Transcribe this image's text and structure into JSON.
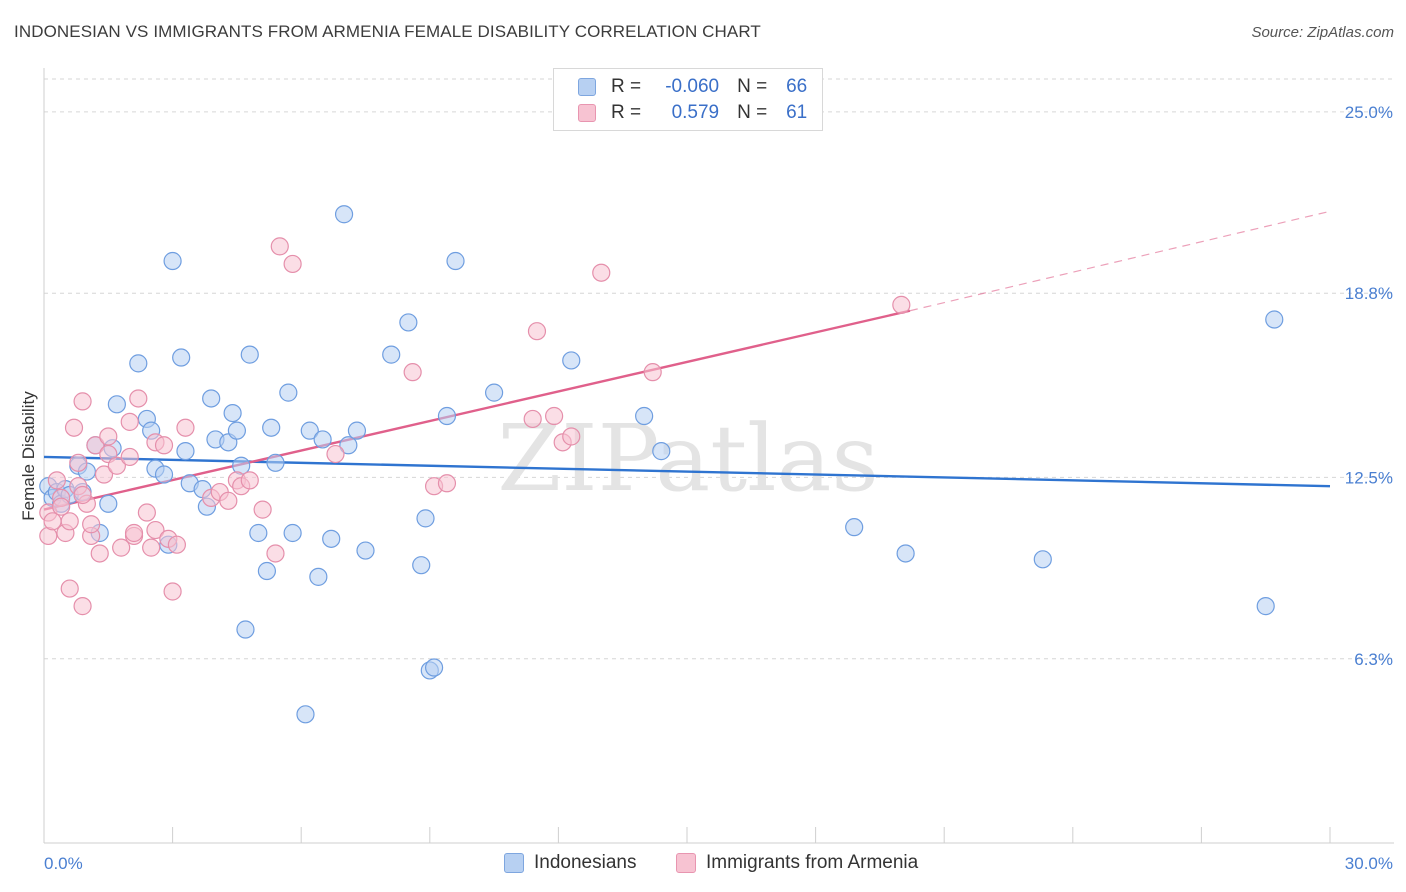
{
  "title": "INDONESIAN VS IMMIGRANTS FROM ARMENIA FEMALE DISABILITY CORRELATION CHART",
  "source": "Source: ZipAtlas.com",
  "watermark": "ZIPatlas",
  "legend_top": {
    "rows": [
      {
        "r_label": "R =",
        "r_value": "-0.060",
        "n_label": "N =",
        "n_value": "66"
      },
      {
        "r_label": "R =",
        "r_value": "0.579",
        "n_label": "N =",
        "n_value": "61"
      }
    ]
  },
  "legend_bottom": {
    "items": [
      "Indonesians",
      "Immigrants from Armenia"
    ]
  },
  "colors": {
    "blue_fill": "#b7d0f2",
    "blue_stroke": "#6f9ee0",
    "blue_line": "#2f74d0",
    "pink_fill": "#f7c3d2",
    "pink_stroke": "#e58fab",
    "pink_line": "#e0608b",
    "grid": "#d6d6d6",
    "tick_label": "#4a7fd1"
  },
  "chart_data": {
    "type": "scatter",
    "title": "INDONESIAN VS IMMIGRANTS FROM ARMENIA FEMALE DISABILITY CORRELATION CHART",
    "xlabel": "",
    "ylabel": "Female Disability",
    "xlim": [
      0,
      30
    ],
    "ylim": [
      0,
      26.5
    ],
    "x_tick_labels": [
      "0.0%",
      "30.0%"
    ],
    "y_ticks": [
      6.3,
      12.5,
      18.8,
      25.0
    ],
    "y_tick_labels": [
      "6.3%",
      "12.5%",
      "18.8%",
      "25.0%"
    ],
    "series": [
      {
        "name": "Indonesians",
        "R": -0.06,
        "N": 66,
        "trend": {
          "x": [
            0,
            30
          ],
          "y": [
            13.2,
            12.2
          ]
        },
        "points": [
          [
            0.1,
            12.2
          ],
          [
            0.2,
            11.8
          ],
          [
            0.3,
            12.0
          ],
          [
            0.4,
            11.6
          ],
          [
            0.5,
            12.1
          ],
          [
            0.6,
            11.9
          ],
          [
            0.8,
            12.9
          ],
          [
            1.0,
            12.7
          ],
          [
            1.2,
            13.6
          ],
          [
            1.3,
            10.6
          ],
          [
            1.5,
            11.6
          ],
          [
            1.6,
            13.5
          ],
          [
            1.7,
            15.0
          ],
          [
            2.2,
            16.4
          ],
          [
            2.4,
            14.5
          ],
          [
            2.5,
            14.1
          ],
          [
            2.6,
            12.8
          ],
          [
            2.8,
            12.6
          ],
          [
            2.9,
            10.2
          ],
          [
            3.0,
            19.9
          ],
          [
            3.2,
            16.6
          ],
          [
            3.3,
            13.4
          ],
          [
            3.4,
            12.3
          ],
          [
            3.7,
            12.1
          ],
          [
            3.8,
            11.5
          ],
          [
            3.9,
            15.2
          ],
          [
            4.0,
            13.8
          ],
          [
            4.3,
            13.7
          ],
          [
            4.4,
            14.7
          ],
          [
            4.5,
            14.1
          ],
          [
            4.6,
            12.9
          ],
          [
            4.7,
            7.3
          ],
          [
            4.8,
            16.7
          ],
          [
            5.0,
            10.6
          ],
          [
            5.2,
            9.3
          ],
          [
            5.3,
            14.2
          ],
          [
            5.4,
            13.0
          ],
          [
            5.7,
            15.4
          ],
          [
            5.8,
            10.6
          ],
          [
            6.1,
            4.4
          ],
          [
            6.2,
            14.1
          ],
          [
            6.4,
            9.1
          ],
          [
            6.5,
            13.8
          ],
          [
            6.7,
            10.4
          ],
          [
            7.0,
            21.5
          ],
          [
            7.1,
            13.6
          ],
          [
            7.3,
            14.1
          ],
          [
            7.5,
            10.0
          ],
          [
            8.1,
            16.7
          ],
          [
            8.5,
            17.8
          ],
          [
            8.8,
            9.5
          ],
          [
            8.9,
            11.1
          ],
          [
            9.0,
            5.9
          ],
          [
            9.1,
            6.0
          ],
          [
            9.4,
            14.6
          ],
          [
            9.6,
            19.9
          ],
          [
            10.5,
            15.4
          ],
          [
            12.3,
            16.5
          ],
          [
            14.0,
            14.6
          ],
          [
            14.4,
            13.4
          ],
          [
            18.9,
            10.8
          ],
          [
            20.1,
            9.9
          ],
          [
            23.3,
            9.7
          ],
          [
            28.5,
            8.1
          ],
          [
            28.7,
            17.9
          ],
          [
            0.9,
            12.0
          ]
        ]
      },
      {
        "name": "Immigrants from Armenia",
        "R": 0.579,
        "N": 61,
        "trend": {
          "x": [
            0,
            20.2
          ],
          "y": [
            11.4,
            18.2
          ]
        },
        "trend_dashed": {
          "x": [
            20.2,
            30
          ],
          "y": [
            18.2,
            21.6
          ]
        },
        "points": [
          [
            0.1,
            10.5
          ],
          [
            0.1,
            11.3
          ],
          [
            0.2,
            11.0
          ],
          [
            0.3,
            12.4
          ],
          [
            0.4,
            11.8
          ],
          [
            0.5,
            10.6
          ],
          [
            0.6,
            8.7
          ],
          [
            0.6,
            11.0
          ],
          [
            0.7,
            14.2
          ],
          [
            0.8,
            12.2
          ],
          [
            0.8,
            13.0
          ],
          [
            0.9,
            15.1
          ],
          [
            0.9,
            8.1
          ],
          [
            1.0,
            11.6
          ],
          [
            1.1,
            10.5
          ],
          [
            1.1,
            10.9
          ],
          [
            1.2,
            13.6
          ],
          [
            1.3,
            9.9
          ],
          [
            1.4,
            12.6
          ],
          [
            1.5,
            13.9
          ],
          [
            1.5,
            13.3
          ],
          [
            1.7,
            12.9
          ],
          [
            1.8,
            10.1
          ],
          [
            2.0,
            14.4
          ],
          [
            2.0,
            13.2
          ],
          [
            2.1,
            10.5
          ],
          [
            2.1,
            10.6
          ],
          [
            2.2,
            15.2
          ],
          [
            2.4,
            11.3
          ],
          [
            2.5,
            10.1
          ],
          [
            2.6,
            10.7
          ],
          [
            2.6,
            13.7
          ],
          [
            2.8,
            13.6
          ],
          [
            2.9,
            10.4
          ],
          [
            3.0,
            8.6
          ],
          [
            3.1,
            10.2
          ],
          [
            3.3,
            14.2
          ],
          [
            3.9,
            11.8
          ],
          [
            4.1,
            12.0
          ],
          [
            4.3,
            11.7
          ],
          [
            4.5,
            12.4
          ],
          [
            4.6,
            12.2
          ],
          [
            4.8,
            12.4
          ],
          [
            5.1,
            11.4
          ],
          [
            5.4,
            9.9
          ],
          [
            5.5,
            20.4
          ],
          [
            5.8,
            19.8
          ],
          [
            6.8,
            13.3
          ],
          [
            8.6,
            16.1
          ],
          [
            9.1,
            12.2
          ],
          [
            9.4,
            12.3
          ],
          [
            11.4,
            14.5
          ],
          [
            11.5,
            17.5
          ],
          [
            11.9,
            14.6
          ],
          [
            12.1,
            13.7
          ],
          [
            12.3,
            13.9
          ],
          [
            13.0,
            19.5
          ],
          [
            14.2,
            16.1
          ],
          [
            20.0,
            18.4
          ],
          [
            0.4,
            11.5
          ],
          [
            0.9,
            11.9
          ]
        ]
      }
    ]
  }
}
